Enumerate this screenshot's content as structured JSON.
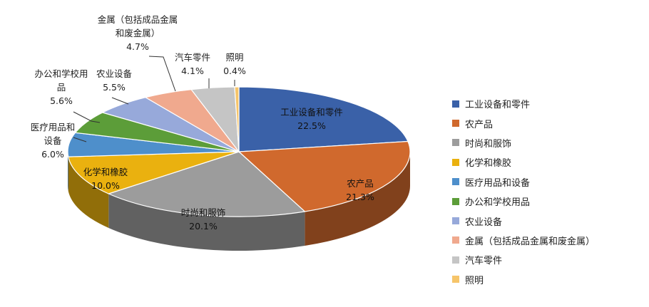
{
  "colors": {
    "background": "#ffffff",
    "text": "#222222"
  },
  "chart_data": {
    "type": "pie",
    "style": "3d-pie",
    "legend_position": "right",
    "slices": [
      {
        "label": "工业设备和零件",
        "value": 22.5,
        "value_label": "22.5%",
        "color": "#3A61A8",
        "data_label": [
          "工业设备和零件"
        ]
      },
      {
        "label": "农产品",
        "value": 21.3,
        "value_label": "21.3%",
        "color": "#D0692D",
        "data_label": [
          "农产品"
        ]
      },
      {
        "label": "时尚和服饰",
        "value": 20.1,
        "value_label": "20.1%",
        "color": "#9C9C9C",
        "data_label": [
          "时尚和服饰"
        ]
      },
      {
        "label": "化学和橡胶",
        "value": 10.0,
        "value_label": "10.0%",
        "color": "#EAB10F",
        "data_label": [
          "化学和橡胶"
        ]
      },
      {
        "label": "医疗用品和设备",
        "value": 6.0,
        "value_label": "6.0%",
        "color": "#4E8FCB",
        "data_label": [
          "医疗用品和",
          "设备"
        ]
      },
      {
        "label": "办公和学校用品",
        "value": 5.6,
        "value_label": "5.6%",
        "color": "#5C9D39",
        "data_label": [
          "办公和学校用",
          "品"
        ]
      },
      {
        "label": "农业设备",
        "value": 5.5,
        "value_label": "5.5%",
        "color": "#97A9DA",
        "data_label": [
          "农业设备"
        ]
      },
      {
        "label": "金属（包括成品金属和废金属）",
        "value": 4.7,
        "value_label": "4.7%",
        "color": "#F0A98E",
        "data_label": [
          "金属（包括成品金属",
          "和废金属）"
        ]
      },
      {
        "label": "汽车零件",
        "value": 4.1,
        "value_label": "4.1%",
        "color": "#C5C5C5",
        "data_label": [
          "汽车零件"
        ]
      },
      {
        "label": "照明",
        "value": 0.4,
        "value_label": "0.4%",
        "color": "#F6C56A",
        "data_label": [
          "照明"
        ]
      }
    ]
  }
}
